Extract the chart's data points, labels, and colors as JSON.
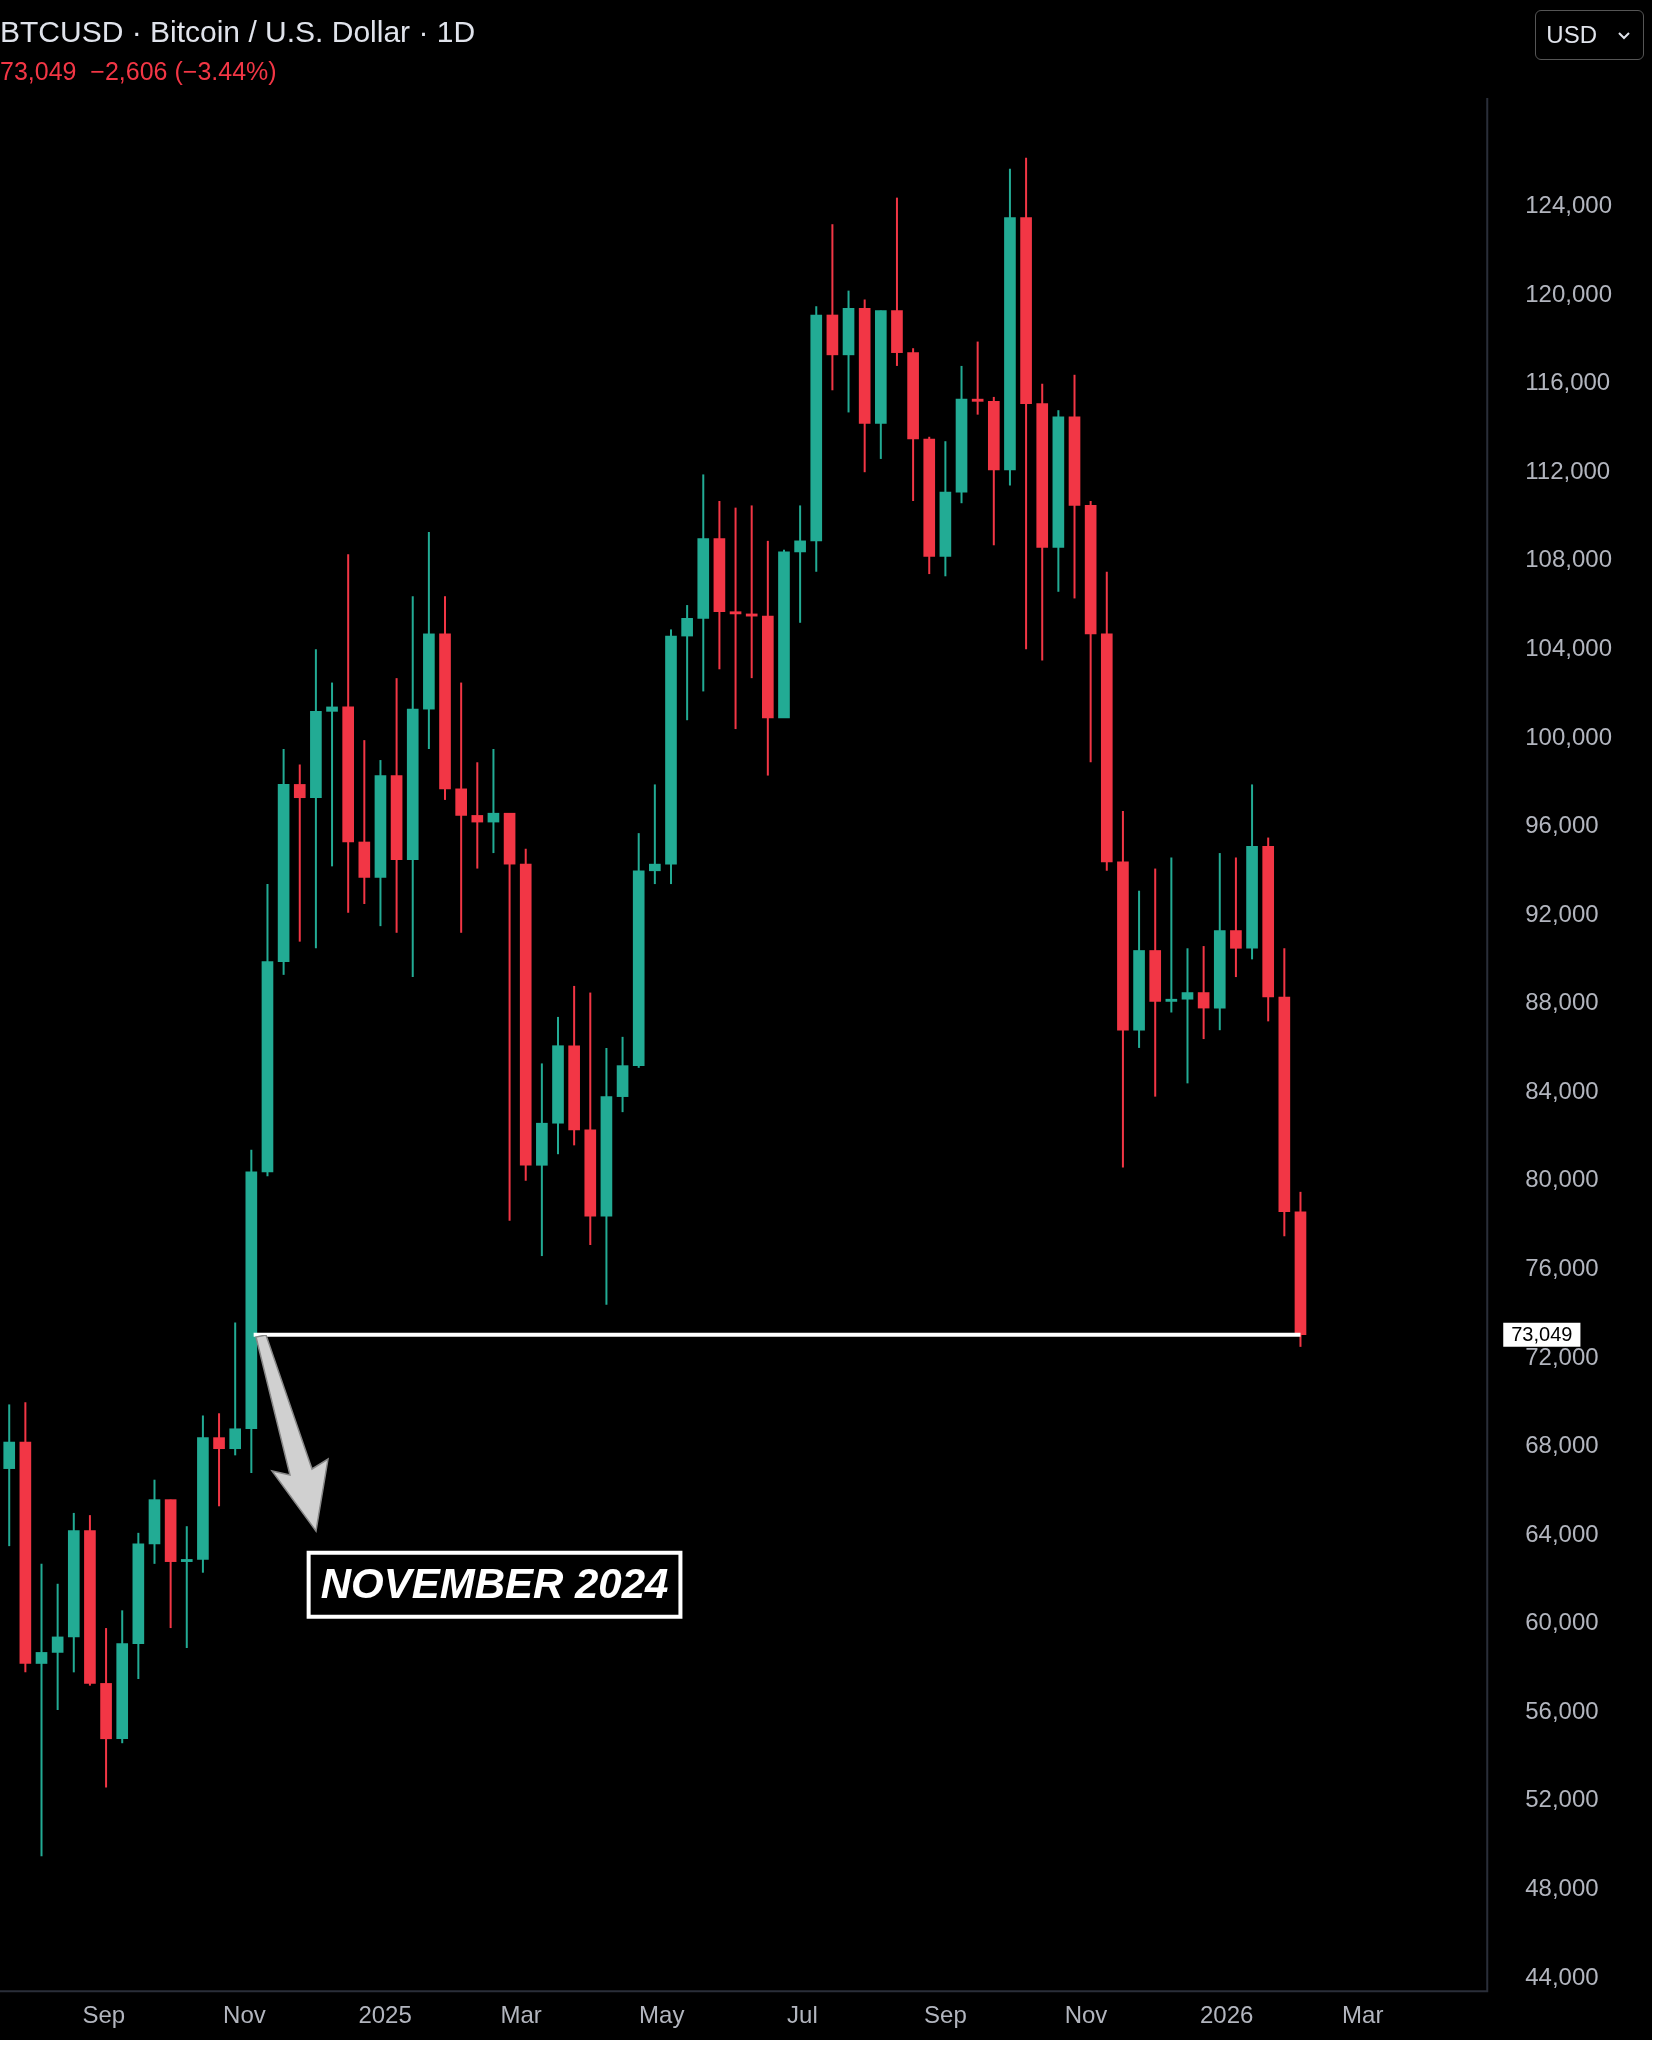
{
  "chart_data": {
    "type": "candlestick",
    "title": "BTCUSD · Bitcoin / U.S. Dollar · 1D",
    "subtitle": "73,049  −2,606 (−3.44%)",
    "x": [
      "2024-07-22",
      "2024-07-29",
      "2024-08-05",
      "2024-08-12",
      "2024-08-19",
      "2024-08-26",
      "2024-09-02",
      "2024-09-09",
      "2024-09-16",
      "2024-09-23",
      "2024-09-30",
      "2024-10-07",
      "2024-10-14",
      "2024-10-21",
      "2024-10-28",
      "2024-11-04",
      "2024-11-11",
      "2024-11-18",
      "2024-11-25",
      "2024-12-02",
      "2024-12-09",
      "2024-12-16",
      "2024-12-23",
      "2024-12-30",
      "2025-01-06",
      "2025-01-13",
      "2025-01-20",
      "2025-01-27",
      "2025-02-03",
      "2025-02-10",
      "2025-02-17",
      "2025-02-24",
      "2025-03-03",
      "2025-03-10",
      "2025-03-17",
      "2025-03-24",
      "2025-03-31",
      "2025-04-07",
      "2025-04-14",
      "2025-04-21",
      "2025-04-28",
      "2025-05-05",
      "2025-05-12",
      "2025-05-19",
      "2025-05-26",
      "2025-06-02",
      "2025-06-09",
      "2025-06-16",
      "2025-06-23",
      "2025-06-30",
      "2025-07-07",
      "2025-07-14",
      "2025-07-21",
      "2025-07-28",
      "2025-08-04",
      "2025-08-11",
      "2025-08-18",
      "2025-08-25",
      "2025-09-01",
      "2025-09-08",
      "2025-09-15",
      "2025-09-22",
      "2025-09-29",
      "2025-10-06",
      "2025-10-13",
      "2025-10-20",
      "2025-10-27",
      "2025-11-03",
      "2025-11-10",
      "2025-11-17",
      "2025-11-24",
      "2025-12-01",
      "2025-12-08",
      "2025-12-15",
      "2025-12-22",
      "2025-12-29",
      "2026-01-05",
      "2026-01-12",
      "2026-01-19",
      "2026-01-26",
      "2026-02-02"
    ],
    "ohlc": [
      [
        67000,
        69900,
        63500,
        68200
      ],
      [
        68200,
        70000,
        57800,
        58200
      ],
      [
        58200,
        62700,
        49500,
        58700
      ],
      [
        58700,
        61800,
        56100,
        59400
      ],
      [
        59400,
        65000,
        57800,
        64200
      ],
      [
        64200,
        64900,
        57200,
        57300
      ],
      [
        57300,
        59800,
        52600,
        54800
      ],
      [
        54800,
        60600,
        54600,
        59100
      ],
      [
        59100,
        64100,
        57500,
        63600
      ],
      [
        63600,
        66500,
        62700,
        65600
      ],
      [
        65600,
        65600,
        59800,
        62800
      ],
      [
        62800,
        64400,
        58900,
        62900
      ],
      [
        62900,
        69400,
        62300,
        68400
      ],
      [
        68400,
        69500,
        65300,
        67900
      ],
      [
        67900,
        73600,
        67600,
        68800
      ],
      [
        68800,
        81400,
        66800,
        80400
      ],
      [
        80400,
        93400,
        80200,
        89900
      ],
      [
        89900,
        99500,
        89300,
        97900
      ],
      [
        97900,
        98800,
        90800,
        97300
      ],
      [
        97300,
        104000,
        90500,
        101200
      ],
      [
        101200,
        102500,
        94200,
        101400
      ],
      [
        101400,
        108300,
        92100,
        95300
      ],
      [
        95300,
        99900,
        92500,
        93700
      ],
      [
        93700,
        99000,
        91500,
        98300
      ],
      [
        98300,
        102700,
        91200,
        94500
      ],
      [
        94500,
        106400,
        89200,
        101300
      ],
      [
        101300,
        109300,
        99500,
        104700
      ],
      [
        104700,
        106400,
        97200,
        97700
      ],
      [
        97700,
        102500,
        91200,
        96500
      ],
      [
        96500,
        98900,
        94100,
        96200
      ],
      [
        96200,
        99500,
        94800,
        96600
      ],
      [
        96600,
        96600,
        78200,
        94300
      ],
      [
        94300,
        95000,
        80000,
        80700
      ],
      [
        80700,
        85300,
        76600,
        82600
      ],
      [
        82600,
        87400,
        81200,
        86100
      ],
      [
        86100,
        88800,
        81600,
        82300
      ],
      [
        82300,
        88500,
        77100,
        78400
      ],
      [
        78400,
        86000,
        74400,
        83800
      ],
      [
        83800,
        86500,
        83100,
        85200
      ],
      [
        85200,
        95700,
        85100,
        94000
      ],
      [
        94000,
        97900,
        93400,
        94300
      ],
      [
        94300,
        104900,
        93400,
        104600
      ],
      [
        104600,
        106000,
        100800,
        105400
      ],
      [
        105400,
        111900,
        102100,
        109000
      ],
      [
        109000,
        110700,
        103100,
        105700
      ],
      [
        105700,
        110400,
        100400,
        105600
      ],
      [
        105600,
        110500,
        102700,
        105500
      ],
      [
        105500,
        108900,
        98300,
        100900
      ],
      [
        100900,
        108500,
        100900,
        108400
      ],
      [
        108400,
        110500,
        105200,
        108900
      ],
      [
        108900,
        119500,
        107500,
        119100
      ],
      [
        119100,
        123200,
        115700,
        117300
      ],
      [
        117300,
        120200,
        114700,
        119400
      ],
      [
        119400,
        119800,
        112000,
        114200
      ],
      [
        114200,
        119300,
        112600,
        119300
      ],
      [
        119300,
        124400,
        116800,
        117400
      ],
      [
        117400,
        117600,
        110700,
        113500
      ],
      [
        113500,
        113600,
        107400,
        108200
      ],
      [
        108200,
        113400,
        107300,
        111100
      ],
      [
        111100,
        116800,
        110600,
        115300
      ],
      [
        115300,
        117900,
        114600,
        115200
      ],
      [
        115200,
        115400,
        108700,
        112100
      ],
      [
        112100,
        125700,
        111400,
        123500
      ],
      [
        123500,
        126200,
        104000,
        115100
      ],
      [
        115100,
        116000,
        103500,
        108600
      ],
      [
        108600,
        114800,
        106600,
        114500
      ],
      [
        114500,
        116400,
        106300,
        110500
      ],
      [
        110500,
        110700,
        98900,
        104700
      ],
      [
        104700,
        107500,
        94000,
        94400
      ],
      [
        94400,
        96700,
        80600,
        86800
      ],
      [
        86800,
        93100,
        86000,
        90400
      ],
      [
        90400,
        94100,
        83800,
        88100
      ],
      [
        88100,
        94600,
        87600,
        88200
      ],
      [
        88200,
        90500,
        84400,
        88500
      ],
      [
        88500,
        90600,
        86400,
        87800
      ],
      [
        87800,
        94800,
        86800,
        91300
      ],
      [
        91300,
        94600,
        89200,
        90500
      ],
      [
        90500,
        97900,
        90000,
        95100
      ],
      [
        95100,
        95500,
        87200,
        88300
      ],
      [
        88300,
        90500,
        77500,
        78600
      ],
      [
        78600,
        79500,
        72500,
        73049
      ]
    ],
    "colors": [
      "#22ab94",
      "#f23645",
      "#22ab94",
      "#22ab94",
      "#22ab94",
      "#f23645",
      "#f23645",
      "#22ab94",
      "#22ab94",
      "#22ab94",
      "#f23645",
      "#22ab94",
      "#22ab94",
      "#f23645",
      "#22ab94",
      "#22ab94",
      "#22ab94",
      "#22ab94",
      "#f23645",
      "#22ab94",
      "#22ab94",
      "#f23645",
      "#f23645",
      "#22ab94",
      "#f23645",
      "#22ab94",
      "#22ab94",
      "#f23645",
      "#f23645",
      "#f23645",
      "#22ab94",
      "#f23645",
      "#f23645",
      "#22ab94",
      "#22ab94",
      "#f23645",
      "#f23645",
      "#22ab94",
      "#22ab94",
      "#22ab94",
      "#22ab94",
      "#22ab94",
      "#22ab94",
      "#22ab94",
      "#f23645",
      "#f23645",
      "#f23645",
      "#f23645",
      "#22ab94",
      "#22ab94",
      "#22ab94",
      "#f23645",
      "#22ab94",
      "#f23645",
      "#22ab94",
      "#f23645",
      "#f23645",
      "#f23645",
      "#22ab94",
      "#22ab94",
      "#f23645",
      "#f23645",
      "#22ab94",
      "#f23645",
      "#f23645",
      "#22ab94",
      "#f23645",
      "#f23645",
      "#f23645",
      "#f23645",
      "#22ab94",
      "#f23645",
      "#22ab94",
      "#22ab94",
      "#f23645",
      "#22ab94",
      "#f23645",
      "#22ab94",
      "#f23645",
      "#f23645",
      "#f23645"
    ],
    "series": [
      {
        "type": "line",
        "x": [
          "2024-11-05",
          "2026-02-02"
        ],
        "values": [
          73049,
          73049
        ],
        "color": "#ffffff"
      }
    ],
    "xlim": [
      "2024-07-18",
      "2026-04-24"
    ],
    "xticks": [
      {
        "value": "2024-09-01",
        "label": "Sep"
      },
      {
        "value": "2024-11-01",
        "label": "Nov"
      },
      {
        "value": "2025-01-01",
        "label": "2025"
      },
      {
        "value": "2025-03-01",
        "label": "Mar"
      },
      {
        "value": "2025-05-01",
        "label": "May"
      },
      {
        "value": "2025-07-01",
        "label": "Jul"
      },
      {
        "value": "2025-09-01",
        "label": "Sep"
      },
      {
        "value": "2025-11-01",
        "label": "Nov"
      },
      {
        "value": "2026-01-01",
        "label": "2026"
      },
      {
        "value": "2026-03-01",
        "label": "Mar"
      }
    ],
    "ylim": [
      43400,
      128900
    ],
    "yticks": [
      {
        "value": 44000,
        "label": "44,000"
      },
      {
        "value": 48000,
        "label": "48,000"
      },
      {
        "value": 52000,
        "label": "52,000"
      },
      {
        "value": 56000,
        "label": "56,000"
      },
      {
        "value": 60000,
        "label": "60,000"
      },
      {
        "value": 64000,
        "label": "64,000"
      },
      {
        "value": 68000,
        "label": "68,000"
      },
      {
        "value": 72000,
        "label": "72,000"
      },
      {
        "value": 76000,
        "label": "76,000"
      },
      {
        "value": 80000,
        "label": "80,000"
      },
      {
        "value": 84000,
        "label": "84,000"
      },
      {
        "value": 88000,
        "label": "88,000"
      },
      {
        "value": 92000,
        "label": "92,000"
      },
      {
        "value": 96000,
        "label": "96,000"
      },
      {
        "value": 100000,
        "label": "100,000"
      },
      {
        "value": 104000,
        "label": "104,000"
      },
      {
        "value": 108000,
        "label": "108,000"
      },
      {
        "value": 112000,
        "label": "112,000"
      },
      {
        "value": 116000,
        "label": "116,000"
      },
      {
        "value": 120000,
        "label": "120,000"
      },
      {
        "value": 124000,
        "label": "124,000"
      }
    ],
    "annotations": [
      "USD",
      "73,049",
      "NOVEMBER 2024"
    ]
  }
}
